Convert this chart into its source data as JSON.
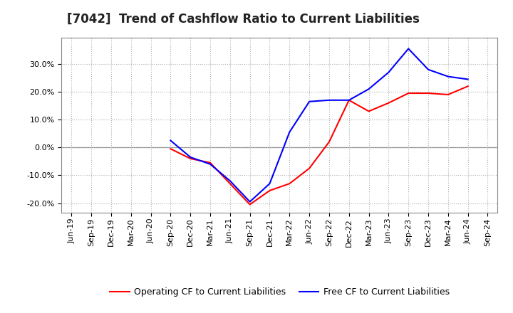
{
  "title": "[7042]  Trend of Cashflow Ratio to Current Liabilities",
  "x_labels": [
    "Jun-19",
    "Sep-19",
    "Dec-19",
    "Mar-20",
    "Jun-20",
    "Sep-20",
    "Dec-20",
    "Mar-21",
    "Jun-21",
    "Sep-21",
    "Dec-21",
    "Mar-22",
    "Jun-22",
    "Sep-22",
    "Dec-22",
    "Mar-23",
    "Jun-23",
    "Sep-23",
    "Dec-23",
    "Mar-24",
    "Jun-24",
    "Sep-24"
  ],
  "operating_cf": [
    null,
    null,
    null,
    null,
    null,
    -0.005,
    -0.04,
    -0.055,
    -0.13,
    -0.205,
    -0.155,
    -0.13,
    -0.075,
    0.02,
    0.17,
    0.13,
    0.16,
    0.195,
    0.195,
    0.19,
    0.22,
    null
  ],
  "free_cf": [
    null,
    null,
    null,
    null,
    null,
    0.025,
    -0.035,
    -0.06,
    -0.12,
    -0.195,
    -0.13,
    0.055,
    0.165,
    0.17,
    0.17,
    0.21,
    0.27,
    0.355,
    0.28,
    0.255,
    0.245,
    null
  ],
  "ylim": [
    -0.235,
    0.395
  ],
  "yticks": [
    -0.2,
    -0.1,
    0.0,
    0.1,
    0.2,
    0.3
  ],
  "operating_color": "#ff0000",
  "free_color": "#0000ff",
  "background_color": "#ffffff",
  "plot_bg_color": "#ffffff",
  "grid_color": "#b0b0b0",
  "legend_operating": "Operating CF to Current Liabilities",
  "legend_free": "Free CF to Current Liabilities",
  "title_fontsize": 12,
  "tick_fontsize": 8
}
